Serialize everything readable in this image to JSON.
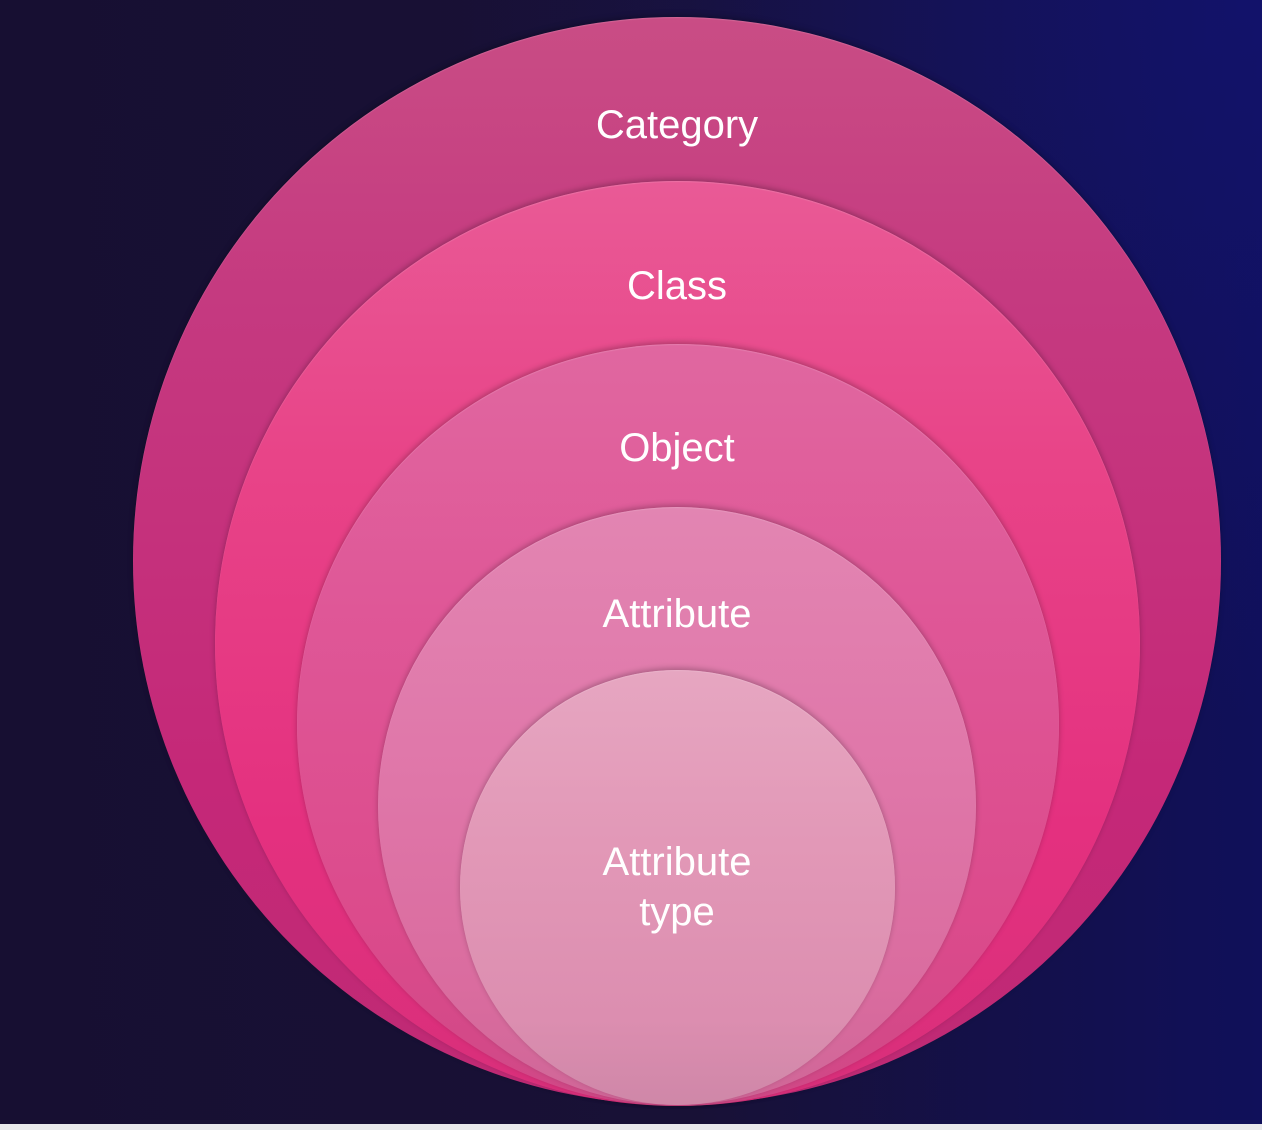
{
  "diagram": {
    "type": "nested-circles",
    "levels": [
      {
        "label": "Category"
      },
      {
        "label": "Class"
      },
      {
        "label": "Object"
      },
      {
        "label": "Attribute"
      },
      {
        "label": "Attribute\ntype"
      }
    ]
  },
  "colors": {
    "background": "#170f32",
    "level_1": "#c53a80",
    "level_2": "#e4307f",
    "level_3": "#dc4b8c",
    "level_4": "#e078aa",
    "level_5": "#e298b7",
    "text": "#ffffff"
  }
}
